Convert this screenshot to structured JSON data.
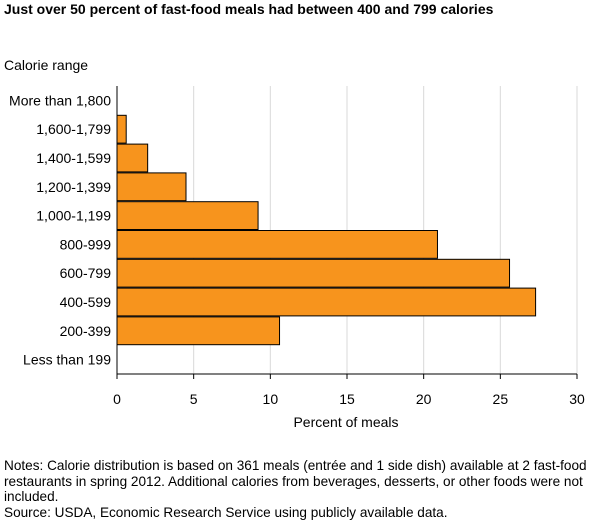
{
  "chart_data": {
    "type": "bar",
    "orientation": "horizontal",
    "title": "Just over 50 percent of fast-food meals had between 400 and 799 calories",
    "ylabel": "Calorie range",
    "xlabel": "Percent of meals",
    "categories": [
      "More than 1,800",
      "1,600-1,799",
      "1,400-1,599",
      "1,200-1,399",
      "1,000-1,199",
      "800-999",
      "600-799",
      "400-599",
      "200-399",
      "Less than 199"
    ],
    "values": [
      0,
      0.6,
      2.0,
      4.5,
      9.2,
      20.9,
      25.6,
      27.3,
      10.6,
      0
    ],
    "xlim": [
      0,
      30
    ],
    "xticks": [
      0,
      5,
      10,
      15,
      20,
      25,
      30
    ],
    "grid": true,
    "bar_color": "#F7941D",
    "bar_edge_color": "#000000",
    "grid_color": "#D9D9D9",
    "notes": "Notes: Calorie distribution is based on 361 meals (entrée and 1 side dish) available at 2 fast-food restaurants in spring 2012. Additional calories from beverages, desserts, or other foods were not included.",
    "source": "Source: USDA, Economic Research Service using publicly available data."
  }
}
